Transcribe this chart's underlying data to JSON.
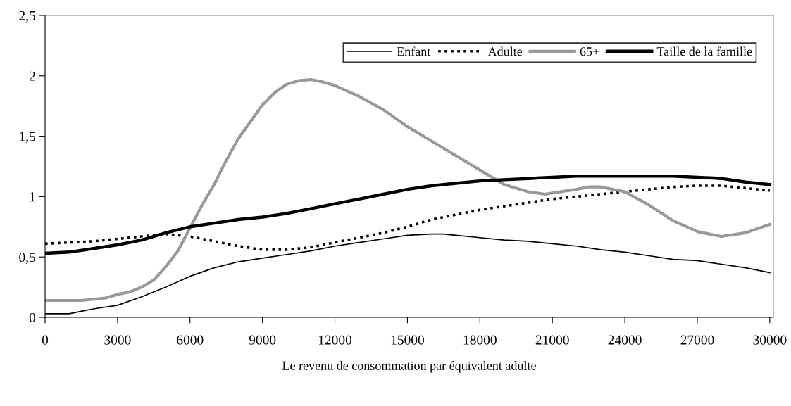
{
  "chart_data": {
    "type": "line",
    "xlabel": "Le revenu de consommation par équivalent adulte",
    "xlim": [
      0,
      30150
    ],
    "xticks": [
      0,
      3000,
      6000,
      9000,
      12000,
      15000,
      18000,
      21000,
      24000,
      27000,
      30000
    ],
    "ylim": [
      0,
      2.5
    ],
    "yticks": [
      0,
      {
        "value": 0.5,
        "label": "0,5"
      },
      {
        "value": 1,
        "label": "1"
      },
      {
        "value": 1.5,
        "label": "1,5"
      },
      {
        "value": 2,
        "label": "2"
      },
      {
        "value": 2.5,
        "label": "2,5"
      }
    ],
    "grid": false,
    "legend": "top right",
    "marker": "none",
    "series": [
      {
        "name": "Enfant",
        "color": "#000000",
        "line_style": "solid",
        "x": [
          0,
          1000,
          1500,
          2000,
          3000,
          4000,
          5000,
          6000,
          7000,
          8000,
          9000,
          10000,
          11000,
          12000,
          13000,
          14000,
          15000,
          16000,
          16500,
          17000,
          18000,
          19000,
          20000,
          21000,
          22000,
          23000,
          24000,
          25000,
          26000,
          27000,
          28000,
          29000,
          30000
        ],
        "values": [
          0.03,
          0.03,
          0.05,
          0.07,
          0.1,
          0.17,
          0.25,
          0.34,
          0.41,
          0.46,
          0.49,
          0.52,
          0.55,
          0.59,
          0.62,
          0.65,
          0.68,
          0.69,
          0.69,
          0.68,
          0.66,
          0.64,
          0.63,
          0.61,
          0.59,
          0.56,
          0.54,
          0.51,
          0.48,
          0.47,
          0.44,
          0.41,
          0.37
        ]
      },
      {
        "name": "Adulte",
        "color": "#000000",
        "line_style": "dotted",
        "x": [
          0,
          2000,
          3000,
          4000,
          5000,
          6000,
          7000,
          8000,
          9000,
          10000,
          11000,
          12000,
          13000,
          14000,
          15000,
          16000,
          17000,
          18000,
          19000,
          20000,
          21000,
          22000,
          23000,
          24000,
          25000,
          26000,
          27000,
          28000,
          29000,
          30000
        ],
        "values": [
          0.61,
          0.63,
          0.65,
          0.67,
          0.69,
          0.67,
          0.63,
          0.59,
          0.56,
          0.56,
          0.58,
          0.62,
          0.66,
          0.7,
          0.75,
          0.81,
          0.85,
          0.89,
          0.92,
          0.95,
          0.98,
          1.0,
          1.02,
          1.04,
          1.06,
          1.08,
          1.09,
          1.09,
          1.07,
          1.05
        ]
      },
      {
        "name": "65+",
        "color": "#999999",
        "line_style": "solid",
        "x": [
          0,
          1500,
          2500,
          3000,
          3500,
          4000,
          4500,
          5000,
          5500,
          6000,
          6500,
          7000,
          7500,
          8000,
          8500,
          9000,
          9500,
          10000,
          10500,
          11000,
          11500,
          12000,
          13000,
          14000,
          15000,
          16000,
          17000,
          18000,
          19000,
          20000,
          20700,
          21000,
          22000,
          22500,
          23000,
          24000,
          25000,
          26000,
          27000,
          28000,
          29000,
          30000
        ],
        "values": [
          0.14,
          0.14,
          0.16,
          0.19,
          0.21,
          0.25,
          0.31,
          0.42,
          0.55,
          0.74,
          0.93,
          1.1,
          1.3,
          1.48,
          1.62,
          1.76,
          1.86,
          1.93,
          1.96,
          1.97,
          1.95,
          1.92,
          1.83,
          1.72,
          1.58,
          1.46,
          1.34,
          1.22,
          1.1,
          1.04,
          1.02,
          1.03,
          1.06,
          1.08,
          1.08,
          1.04,
          0.93,
          0.8,
          0.71,
          0.67,
          0.7,
          0.77
        ]
      },
      {
        "name": "Taille de la famille",
        "color": "#000000",
        "line_style": "solid",
        "x": [
          0,
          1000,
          2000,
          3000,
          4000,
          5000,
          6000,
          7000,
          8000,
          9000,
          10000,
          11000,
          12000,
          13000,
          14000,
          15000,
          16000,
          17000,
          18000,
          19000,
          20000,
          21000,
          22000,
          24000,
          26000,
          27000,
          28000,
          29000,
          30000
        ],
        "values": [
          0.53,
          0.54,
          0.57,
          0.6,
          0.64,
          0.7,
          0.75,
          0.78,
          0.81,
          0.83,
          0.86,
          0.9,
          0.94,
          0.98,
          1.02,
          1.06,
          1.09,
          1.11,
          1.13,
          1.14,
          1.15,
          1.16,
          1.17,
          1.17,
          1.17,
          1.16,
          1.15,
          1.12,
          1.1
        ]
      }
    ]
  }
}
